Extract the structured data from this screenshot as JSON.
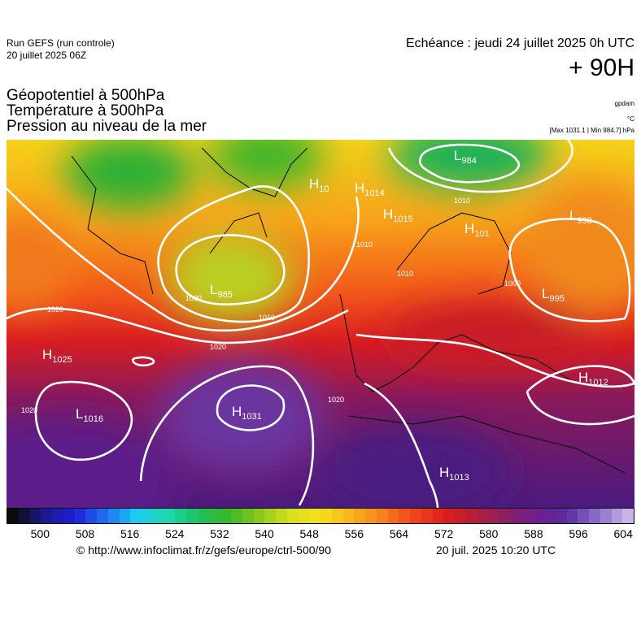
{
  "header": {
    "run": "Run GEFS (run controle)",
    "run_date": "20 juillet 2025 06Z",
    "echeance": "Echéance : jeudi 24 juillet 2025 0h UTC",
    "lead": "+ 90H",
    "titles": [
      "Géopotentiel à 500hPa",
      "Température à 500hPa",
      "Pression au niveau de la mer"
    ],
    "units": [
      "gpdam",
      "°C"
    ],
    "range": "[Max 1031.1 | Min 984.7] hPa"
  },
  "pressure_centers": [
    {
      "type": "H",
      "value": 10
    },
    {
      "type": "H",
      "value": 1014
    },
    {
      "type": "L",
      "value": 984
    },
    {
      "type": "H",
      "value": 1015
    },
    {
      "type": "H",
      "value": 101
    },
    {
      "type": "L",
      "value": 998
    },
    {
      "type": "L",
      "value": 985
    },
    {
      "type": "L",
      "value": 995
    },
    {
      "type": "H",
      "value": 1025
    },
    {
      "type": "H",
      "value": 1012
    },
    {
      "type": "L",
      "value": 1016
    },
    {
      "type": "H",
      "value": 1031
    },
    {
      "type": "H",
      "value": 1013
    }
  ],
  "isobar_labels": [
    1020,
    1020,
    1010,
    1020,
    1020,
    1010,
    1000,
    1010,
    1000,
    1010
  ],
  "colorbar_labels": [
    500,
    508,
    516,
    524,
    532,
    540,
    548,
    556,
    564,
    572,
    580,
    588,
    596,
    604
  ],
  "footer": {
    "url": "© http://www.infoclimat.fr/z/gefs/europe/ctrl-500/90",
    "stamp": "20 juil. 2025 10:20 UTC"
  }
}
